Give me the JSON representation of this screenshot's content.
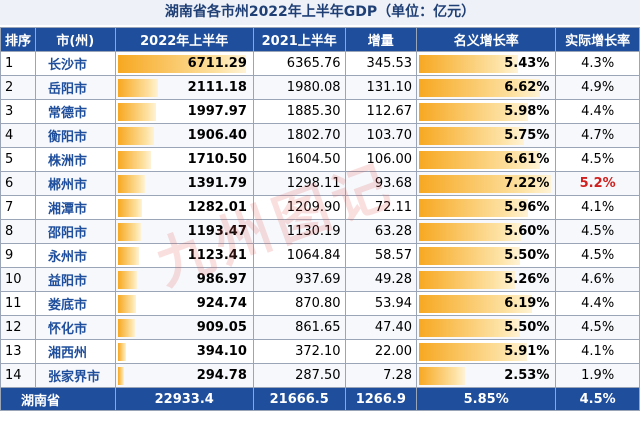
{
  "title": "湖南省各市州2022年上半年GDP（单位：亿元）",
  "headers": [
    "排序",
    "市(州)",
    "2022年上半年",
    "2021上半年",
    "增量",
    "名义增长率",
    "实际增长率"
  ],
  "chart_data": {
    "type": "table",
    "rows": [
      {
        "rank": "1",
        "city": "长沙市",
        "gdp_2022": 6711.29,
        "gdp_2021": "6365.76",
        "increase": "345.53",
        "nominal": 5.43,
        "real": "4.3%"
      },
      {
        "rank": "2",
        "city": "岳阳市",
        "gdp_2022": 2111.18,
        "gdp_2021": "1980.08",
        "increase": "131.10",
        "nominal": 6.62,
        "real": "4.9%"
      },
      {
        "rank": "3",
        "city": "常德市",
        "gdp_2022": 1997.97,
        "gdp_2021": "1885.30",
        "increase": "112.67",
        "nominal": 5.98,
        "real": "4.4%"
      },
      {
        "rank": "4",
        "city": "衡阳市",
        "gdp_2022": 1906.4,
        "gdp_2021": "1802.70",
        "increase": "103.70",
        "nominal": 5.75,
        "real": "4.7%"
      },
      {
        "rank": "5",
        "city": "株洲市",
        "gdp_2022": 1710.5,
        "gdp_2021": "1604.50",
        "increase": "106.00",
        "nominal": 6.61,
        "real": "4.5%"
      },
      {
        "rank": "6",
        "city": "郴州市",
        "gdp_2022": 1391.79,
        "gdp_2021": "1298.11",
        "increase": "93.68",
        "nominal": 7.22,
        "real": "5.2%",
        "highlight": true
      },
      {
        "rank": "7",
        "city": "湘潭市",
        "gdp_2022": 1282.01,
        "gdp_2021": "1209.90",
        "increase": "72.11",
        "nominal": 5.96,
        "real": "4.1%"
      },
      {
        "rank": "8",
        "city": "邵阳市",
        "gdp_2022": 1193.47,
        "gdp_2021": "1130.19",
        "increase": "63.28",
        "nominal": 5.6,
        "real": "4.5%"
      },
      {
        "rank": "9",
        "city": "永州市",
        "gdp_2022": 1123.41,
        "gdp_2021": "1064.84",
        "increase": "58.57",
        "nominal": 5.5,
        "real": "4.5%"
      },
      {
        "rank": "10",
        "city": "益阳市",
        "gdp_2022": 986.97,
        "gdp_2021": "937.69",
        "increase": "49.28",
        "nominal": 5.26,
        "real": "4.6%"
      },
      {
        "rank": "11",
        "city": "娄底市",
        "gdp_2022": 924.74,
        "gdp_2021": "870.80",
        "increase": "53.94",
        "nominal": 6.19,
        "real": "4.4%"
      },
      {
        "rank": "12",
        "city": "怀化市",
        "gdp_2022": 909.05,
        "gdp_2021": "861.65",
        "increase": "47.40",
        "nominal": 5.5,
        "real": "4.5%"
      },
      {
        "rank": "13",
        "city": "湘西州",
        "gdp_2022": 394.1,
        "gdp_2021": "372.10",
        "increase": "22.00",
        "nominal": 5.91,
        "real": "4.1%"
      },
      {
        "rank": "14",
        "city": "张家界市",
        "gdp_2022": 294.78,
        "gdp_2021": "287.50",
        "increase": "7.28",
        "nominal": 2.53,
        "real": "1.9%"
      }
    ],
    "total": {
      "label": "湖南省",
      "gdp_2022": "22933.4",
      "gdp_2021": "21666.5",
      "increase": "1266.9",
      "nominal": "5.85%",
      "real": "4.5%"
    }
  },
  "watermark": "九州图记",
  "credit": "@九州图记",
  "colors": {
    "header_bg": "#1f4e9c",
    "bar": "#f7a821",
    "highlight": "#d0201f"
  }
}
